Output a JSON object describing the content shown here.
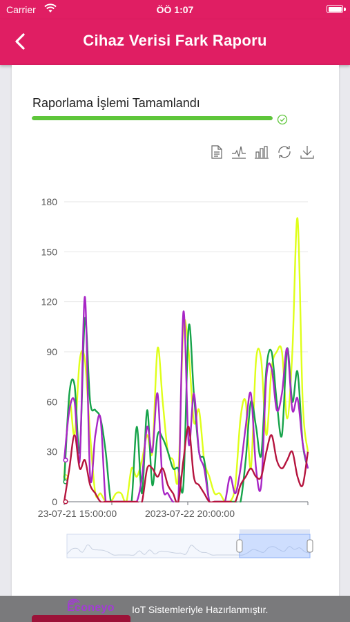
{
  "status_bar": {
    "carrier": "Carrier",
    "time": "ÖÖ 1:07"
  },
  "nav": {
    "title": "Cihaz Verisi Fark Raporu",
    "back_icon": "chevron-left-icon"
  },
  "progress": {
    "label": "Raporlama İşlemi Tamamlandı",
    "value_percent": 100,
    "color": "#5ec63a"
  },
  "toolbox": [
    "data-view-icon",
    "line-chart-icon",
    "bar-chart-icon",
    "restore-icon",
    "download-icon"
  ],
  "chart_data": {
    "type": "line",
    "ylim": [
      0,
      180
    ],
    "y_ticks": [
      "0",
      "30",
      "60",
      "90",
      "120",
      "150",
      "180"
    ],
    "x_tick_labels": [
      "23-07-21 15:00:00",
      "2023-07-22 20:00:00"
    ],
    "grid": true,
    "legend": "none",
    "series": [
      {
        "color": "#dfff1a",
        "values": [
          15,
          60,
          40,
          85,
          85,
          40,
          5,
          5,
          0,
          0,
          5,
          5,
          0,
          20,
          15,
          25,
          40,
          30,
          92,
          60,
          30,
          25,
          15,
          105,
          90,
          48,
          55,
          25,
          15,
          5,
          5,
          0,
          0,
          10,
          50,
          60,
          20,
          85,
          85,
          40,
          80,
          90,
          90,
          50,
          90,
          170,
          60,
          30
        ]
      },
      {
        "color": "#16a34a",
        "values": [
          12,
          65,
          70,
          30,
          110,
          60,
          55,
          50,
          30,
          0,
          0,
          0,
          0,
          0,
          45,
          5,
          55,
          10,
          40,
          38,
          30,
          20,
          20,
          10,
          105,
          65,
          30,
          25,
          0,
          0,
          0,
          0,
          0,
          0,
          0,
          25,
          60,
          45,
          28,
          80,
          90,
          60,
          40,
          92,
          60,
          78,
          35,
          20
        ]
      },
      {
        "color": "#a826c6",
        "values": [
          25,
          55,
          60,
          25,
          123,
          15,
          40,
          50,
          0,
          0,
          0,
          0,
          0,
          0,
          0,
          15,
          45,
          30,
          65,
          10,
          5,
          0,
          0,
          114,
          35,
          65,
          30,
          20,
          0,
          0,
          0,
          0,
          15,
          5,
          20,
          45,
          65,
          20,
          10,
          75,
          80,
          55,
          65,
          92,
          55,
          62,
          35,
          20
        ]
      },
      {
        "color": "#b5143e",
        "values": [
          0,
          20,
          40,
          20,
          25,
          10,
          5,
          0,
          0,
          0,
          0,
          0,
          0,
          0,
          0,
          0,
          20,
          20,
          15,
          20,
          10,
          5,
          0,
          25,
          45,
          15,
          10,
          5,
          0,
          0,
          0,
          0,
          0,
          0,
          10,
          15,
          20,
          15,
          15,
          30,
          40,
          25,
          20,
          25,
          30,
          15,
          10,
          30
        ]
      }
    ]
  },
  "footer": {
    "brand": "Econeyo",
    "tagline": "IoT Sistemleriyle Hazırlanmıştır."
  }
}
